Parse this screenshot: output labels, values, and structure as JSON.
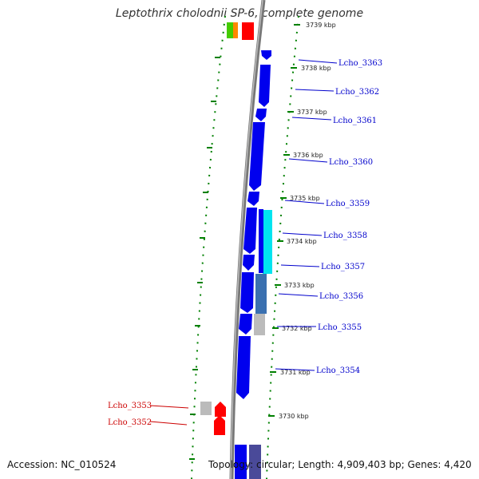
{
  "title": "Leptothrix cholodnii SP-6, complete genome",
  "footer": {
    "accession": "Accession: NC_010524",
    "topology": "Topology: circular; Length: 4,909,403 bp; Genes: 4,420"
  },
  "colors": {
    "forward_gene": "#0000ee",
    "reverse_gene": "#ff0000",
    "rna_gene": "#00e0f0",
    "pseudo_gene": "#bbbbbb",
    "tick_green": "#008000",
    "label_forward": "#0000cc",
    "label_reverse": "#cc0000"
  },
  "kbp_ticks": [
    "3739 kbp",
    "3738 kbp",
    "3737 kbp",
    "3736 kbp",
    "3735 kbp",
    "3734 kbp",
    "3733 kbp",
    "3732 kbp",
    "3731 kbp",
    "3730 kbp"
  ],
  "gene_labels": [
    {
      "name": "Lcho_3363",
      "strand": "forward"
    },
    {
      "name": "Lcho_3362",
      "strand": "forward"
    },
    {
      "name": "Lcho_3361",
      "strand": "forward"
    },
    {
      "name": "Lcho_3360",
      "strand": "forward"
    },
    {
      "name": "Lcho_3359",
      "strand": "forward"
    },
    {
      "name": "Lcho_3358",
      "strand": "forward"
    },
    {
      "name": "Lcho_3357",
      "strand": "forward"
    },
    {
      "name": "Lcho_3356",
      "strand": "forward"
    },
    {
      "name": "Lcho_3355",
      "strand": "forward"
    },
    {
      "name": "Lcho_3354",
      "strand": "forward"
    },
    {
      "name": "Lcho_3353",
      "strand": "reverse"
    },
    {
      "name": "Lcho_3352",
      "strand": "reverse"
    }
  ]
}
